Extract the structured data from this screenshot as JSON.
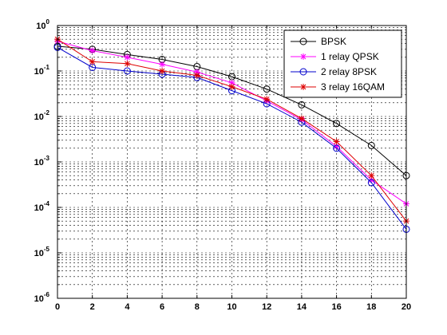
{
  "chart_data": {
    "type": "line",
    "title": "",
    "xlabel": "",
    "ylabel": "",
    "x": [
      0,
      2,
      4,
      6,
      8,
      10,
      12,
      14,
      16,
      18,
      20
    ],
    "xlim": [
      0,
      20
    ],
    "ylim": [
      1e-06,
      1
    ],
    "yscale": "log",
    "grid": true,
    "legend_position": "top-right",
    "x_tick_labels": [
      "0",
      "2",
      "4",
      "6",
      "8",
      "10",
      "12",
      "14",
      "16",
      "18",
      "20"
    ],
    "y_tick_labels": [
      {
        "base": "10",
        "exp": "0"
      },
      {
        "base": "10",
        "exp": "-1"
      },
      {
        "base": "10",
        "exp": "-2"
      },
      {
        "base": "10",
        "exp": "-3"
      },
      {
        "base": "10",
        "exp": "-4"
      },
      {
        "base": "10",
        "exp": "-5"
      },
      {
        "base": "10",
        "exp": "-6"
      }
    ],
    "series": [
      {
        "name": "BPSK",
        "color": "#000000",
        "marker": "circle",
        "values": [
          0.35,
          0.3,
          0.23,
          0.18,
          0.125,
          0.075,
          0.04,
          0.018,
          0.007,
          0.0023,
          0.0005
        ]
      },
      {
        "name": "1 relay QPSK",
        "color": "#ff00ff",
        "marker": "star",
        "values": [
          0.45,
          0.28,
          0.2,
          0.14,
          0.095,
          0.055,
          0.022,
          0.0085,
          0.0022,
          0.0004,
          0.00012
        ]
      },
      {
        "name": "2 relay 8PSK",
        "color": "#0000cc",
        "marker": "circle",
        "values": [
          0.33,
          0.12,
          0.1,
          0.085,
          0.072,
          0.037,
          0.019,
          0.0075,
          0.002,
          0.00035,
          3.3e-05
        ]
      },
      {
        "name": "3 relay 16QAM",
        "color": "#dd0000",
        "marker": "star",
        "values": [
          0.5,
          0.16,
          0.145,
          0.1,
          0.08,
          0.045,
          0.024,
          0.009,
          0.0028,
          0.0005,
          5e-05
        ]
      }
    ]
  }
}
